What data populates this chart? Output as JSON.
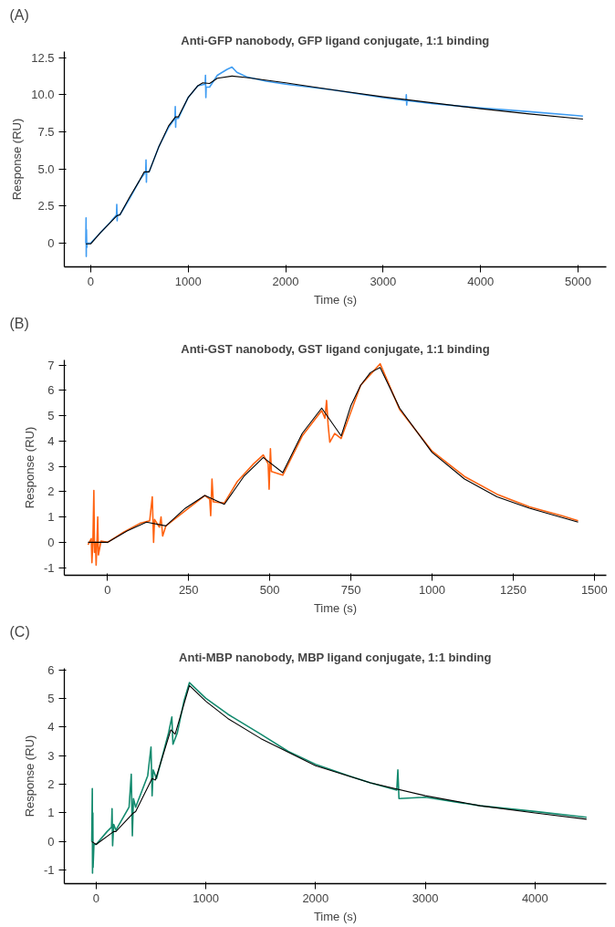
{
  "chart_data": [
    {
      "type": "line",
      "title": "Anti-GFP nanobody, GFP ligand conjugate, 1:1 binding",
      "xlabel": "Time (s)",
      "ylabel": "Response (RU)",
      "annotations": [
        "(A)"
      ],
      "xlim": [
        -270,
        5290
      ],
      "ylim": [
        -1.6,
        12.9
      ],
      "xticks": [
        0,
        1000,
        2000,
        3000,
        4000,
        5000
      ],
      "yticks": [
        {
          "value": 0,
          "label": "0"
        },
        2.5,
        {
          "value": 5,
          "label": "5.0"
        },
        7.5,
        {
          "value": 10,
          "label": "10.0"
        },
        12.5
      ],
      "grid": false,
      "series": [
        {
          "color": "#3f9cf2",
          "x": [
            -50,
            -47,
            -45,
            -43,
            -40,
            -35,
            0,
            100,
            200,
            265,
            268,
            272,
            275,
            300,
            400,
            500,
            565,
            568,
            572,
            575,
            600,
            700,
            800,
            865,
            868,
            872,
            875,
            900,
            1000,
            1100,
            1175,
            1178,
            1182,
            1185,
            1220,
            1300,
            1400,
            1450,
            1500,
            1600,
            1800,
            2000,
            2500,
            3000,
            3235,
            3238,
            3242,
            3245,
            3500,
            4000,
            4500,
            5050
          ],
          "values": [
            0,
            1.7,
            -0.9,
            0.9,
            -0.3,
            0,
            0,
            0.7,
            1.4,
            1.9,
            2.6,
            1.5,
            1.9,
            1.9,
            3.0,
            4.2,
            4.8,
            5.6,
            4.1,
            4.8,
            4.8,
            6.5,
            7.8,
            8.4,
            9.2,
            7.8,
            8.4,
            8.4,
            9.8,
            10.6,
            10.7,
            11.3,
            9.8,
            10.5,
            10.5,
            11.3,
            11.7,
            11.85,
            11.5,
            11.2,
            10.9,
            10.7,
            10.3,
            9.8,
            9.6,
            10.0,
            9.3,
            9.6,
            9.4,
            9.1,
            8.85,
            8.55
          ]
        },
        {
          "color": "#000000",
          "x": [
            -50,
            0,
            100,
            270,
            300,
            400,
            500,
            550,
            600,
            700,
            800,
            870,
            900,
            1000,
            1100,
            1150,
            1220,
            1300,
            1450,
            1600,
            2000,
            2500,
            3000,
            3500,
            4000,
            4500,
            5050
          ],
          "values": [
            -0.05,
            -0.05,
            0.7,
            1.85,
            1.9,
            3.1,
            4.2,
            4.8,
            4.8,
            6.5,
            7.9,
            8.5,
            8.5,
            9.8,
            10.6,
            10.8,
            10.75,
            11.1,
            11.25,
            11.15,
            10.8,
            10.3,
            9.85,
            9.45,
            9.05,
            8.7,
            8.35
          ]
        }
      ]
    },
    {
      "type": "line",
      "title": "Anti-GST nanobody, GST ligand conjugate, 1:1 binding",
      "xlabel": "Time (s)",
      "ylabel": "Response (RU)",
      "annotations": [
        "(B)"
      ],
      "xlim": [
        -133,
        1537
      ],
      "ylim": [
        -1.3,
        7.2
      ],
      "xticks": [
        0,
        250,
        500,
        750,
        1000,
        1250,
        1500
      ],
      "yticks": [
        -1,
        0,
        1,
        2,
        3,
        4,
        5,
        6,
        7
      ],
      "grid": false,
      "series": [
        {
          "color": "#ff6210",
          "x": [
            -60,
            -50,
            -48,
            -45,
            -42,
            -40,
            -37,
            -35,
            -32,
            -30,
            -28,
            -20,
            0,
            50,
            100,
            130,
            138,
            142,
            145,
            160,
            165,
            170,
            180,
            250,
            300,
            315,
            318,
            322,
            326,
            360,
            400,
            450,
            480,
            495,
            498,
            502,
            505,
            540,
            600,
            660,
            670,
            675,
            680,
            685,
            700,
            720,
            780,
            840,
            900,
            1000,
            1100,
            1200,
            1300,
            1400,
            1450
          ],
          "values": [
            -0.1,
            0.15,
            -0.8,
            0.0,
            2.05,
            -0.4,
            0.0,
            -0.9,
            0.2,
            1.0,
            -0.5,
            0.05,
            0.0,
            0.4,
            0.75,
            0.85,
            1.8,
            0.0,
            0.9,
            0.6,
            1.0,
            0.25,
            0.65,
            1.35,
            1.85,
            1.7,
            1.05,
            2.5,
            1.6,
            1.55,
            2.4,
            3.1,
            3.45,
            3.1,
            2.1,
            3.7,
            2.8,
            2.65,
            4.2,
            5.2,
            4.9,
            5.6,
            4.6,
            3.95,
            4.3,
            4.1,
            6.2,
            7.05,
            5.25,
            3.6,
            2.6,
            1.9,
            1.4,
            1.05,
            0.85
          ]
        },
        {
          "color": "#000000",
          "x": [
            -60,
            0,
            60,
            120,
            180,
            240,
            300,
            360,
            420,
            480,
            540,
            600,
            660,
            720,
            750,
            780,
            810,
            840,
            900,
            1000,
            1100,
            1200,
            1300,
            1450
          ],
          "values": [
            0,
            0,
            0.45,
            0.8,
            0.65,
            1.35,
            1.85,
            1.5,
            2.6,
            3.35,
            2.75,
            4.3,
            5.3,
            4.2,
            5.4,
            6.2,
            6.7,
            6.9,
            5.3,
            3.55,
            2.5,
            1.8,
            1.35,
            0.8
          ]
        }
      ]
    },
    {
      "type": "line",
      "title": "Anti-MBP nanobody, MBP ligand conjugate, 1:1 binding",
      "xlabel": "Time (s)",
      "ylabel": "Response (RU)",
      "annotations": [
        "(C)"
      ],
      "xlim": [
        -290,
        4650
      ],
      "ylim": [
        -1.47,
        6.05
      ],
      "xticks": [
        0,
        1000,
        2000,
        3000,
        4000
      ],
      "yticks": [
        -1,
        0,
        1,
        2,
        3,
        4,
        5,
        6
      ],
      "grid": false,
      "series": [
        {
          "color": "#138a6e",
          "x": [
            -40,
            -35,
            -33,
            -30,
            -28,
            -20,
            0,
            100,
            140,
            145,
            150,
            160,
            180,
            300,
            320,
            330,
            340,
            360,
            470,
            500,
            510,
            520,
            550,
            660,
            690,
            700,
            740,
            800,
            850,
            1000,
            1200,
            1500,
            1750,
            2000,
            2300,
            2500,
            2740,
            2750,
            2760,
            3000,
            3500,
            4000,
            4470
          ],
          "values": [
            0,
            1.85,
            -1.1,
            1.0,
            -0.9,
            -0.1,
            -0.1,
            0.35,
            0.5,
            1.15,
            -0.15,
            0.6,
            0.4,
            1.2,
            2.35,
            0.2,
            1.5,
            1.2,
            2.3,
            3.3,
            1.6,
            2.5,
            2.2,
            3.8,
            4.35,
            3.4,
            3.8,
            4.9,
            5.55,
            5.0,
            4.45,
            3.75,
            3.15,
            2.7,
            2.3,
            2.05,
            1.8,
            2.5,
            1.5,
            1.55,
            1.25,
            1.05,
            0.85
          ]
        },
        {
          "color": "#000000",
          "x": [
            -40,
            0,
            160,
            180,
            340,
            360,
            510,
            540,
            680,
            720,
            850,
            1000,
            1200,
            1500,
            2000,
            2500,
            3000,
            3500,
            4000,
            4470
          ],
          "values": [
            0,
            -0.1,
            0.35,
            0.35,
            1.0,
            1.05,
            2.2,
            2.15,
            3.9,
            3.75,
            5.45,
            4.9,
            4.3,
            3.6,
            2.65,
            2.05,
            1.6,
            1.25,
            1.0,
            0.78
          ]
        }
      ]
    }
  ]
}
